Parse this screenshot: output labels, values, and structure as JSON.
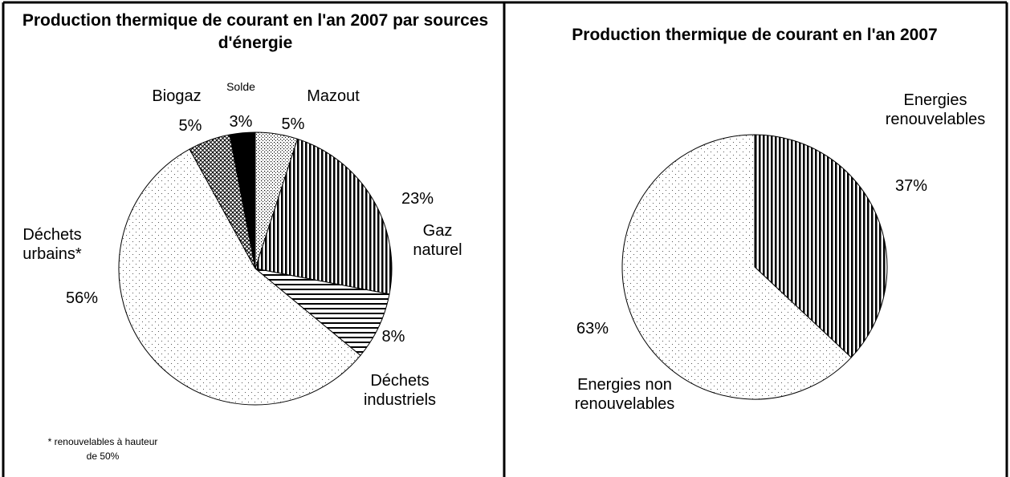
{
  "chart_data": [
    {
      "type": "pie",
      "title": "Production thermique de courant en l'an 2007 par sources d'énergie",
      "categories": [
        "Mazout",
        "Gaz naturel",
        "Déchets industriels",
        "Déchets urbains*",
        "Biogaz",
        "Solde"
      ],
      "values": [
        5,
        23,
        8,
        56,
        5,
        3
      ],
      "value_labels": [
        "5%",
        "23%",
        "8%",
        "56%",
        "5%",
        "3%"
      ],
      "patterns": [
        "dots-dense",
        "vertical-stripes",
        "horizontal-stripes",
        "dots-sparse",
        "crosshatch",
        "solid-black"
      ],
      "footnote": "* renouvelables à hauteur de 50%"
    },
    {
      "type": "pie",
      "title": "Production thermique de courant en l'an 2007",
      "categories": [
        "Energies renouvelables",
        "Energies non renouvelables"
      ],
      "values": [
        37,
        63
      ],
      "value_labels": [
        "37%",
        "63%"
      ],
      "patterns": [
        "vertical-stripes",
        "dots-sparse"
      ]
    }
  ]
}
